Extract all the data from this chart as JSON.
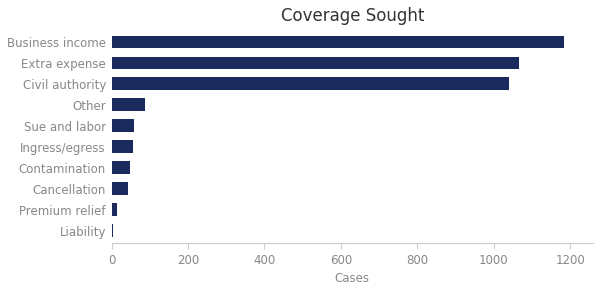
{
  "title": "Coverage Sought",
  "xlabel": "Cases",
  "categories": [
    "Liability",
    "Premium relief",
    "Cancellation",
    "Contamination",
    "Ingress/egress",
    "Sue and labor",
    "Other",
    "Civil authority",
    "Extra expense",
    "Business income"
  ],
  "values": [
    5,
    15,
    42,
    48,
    55,
    60,
    88,
    1040,
    1065,
    1185
  ],
  "bar_color": "#1B2A5C",
  "background_color": "#FFFFFF",
  "xlim": [
    0,
    1260
  ],
  "xticks": [
    0,
    200,
    400,
    600,
    800,
    1000,
    1200
  ],
  "title_fontsize": 12,
  "label_fontsize": 8.5,
  "tick_fontsize": 8.5,
  "bar_height": 0.6
}
